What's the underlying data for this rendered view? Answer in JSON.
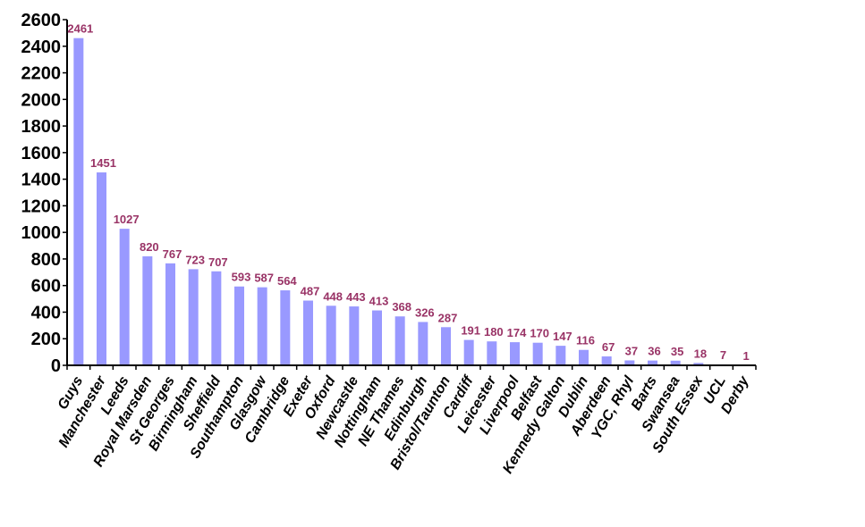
{
  "chart_data": {
    "type": "bar",
    "categories": [
      "Guys",
      "Manchester",
      "Leeds",
      "Royal Marsden",
      "St Georges",
      "Birmingham",
      "Sheffield",
      "Southampton",
      "Glasgow",
      "Cambridge",
      "Exeter",
      "Oxford",
      "Newcastle",
      "Nottingham",
      "NE Thames",
      "Edinburgh",
      "Bristol/Taunton",
      "Cardiff",
      "Leicester",
      "Liverpool",
      "Belfast",
      "Kennedy Galton",
      "Dublin",
      "Aberdeen",
      "YGC, Rhyl",
      "Barts",
      "Swansea",
      "South Essex",
      "UCL",
      "Derby"
    ],
    "values": [
      2461,
      1451,
      1027,
      820,
      767,
      723,
      707,
      593,
      587,
      564,
      487,
      448,
      443,
      413,
      368,
      326,
      287,
      191,
      180,
      174,
      170,
      147,
      116,
      67,
      37,
      36,
      35,
      18,
      7,
      1
    ],
    "ylim": [
      0,
      2600
    ],
    "yticks": [
      0,
      200,
      400,
      600,
      800,
      1000,
      1200,
      1400,
      1600,
      1800,
      2000,
      2200,
      2400,
      2600
    ],
    "data_labels": true,
    "grid": false,
    "legend": "none",
    "colors": {
      "bar": "#9999ff",
      "data_label": "#993366",
      "axis": "#000000"
    }
  }
}
